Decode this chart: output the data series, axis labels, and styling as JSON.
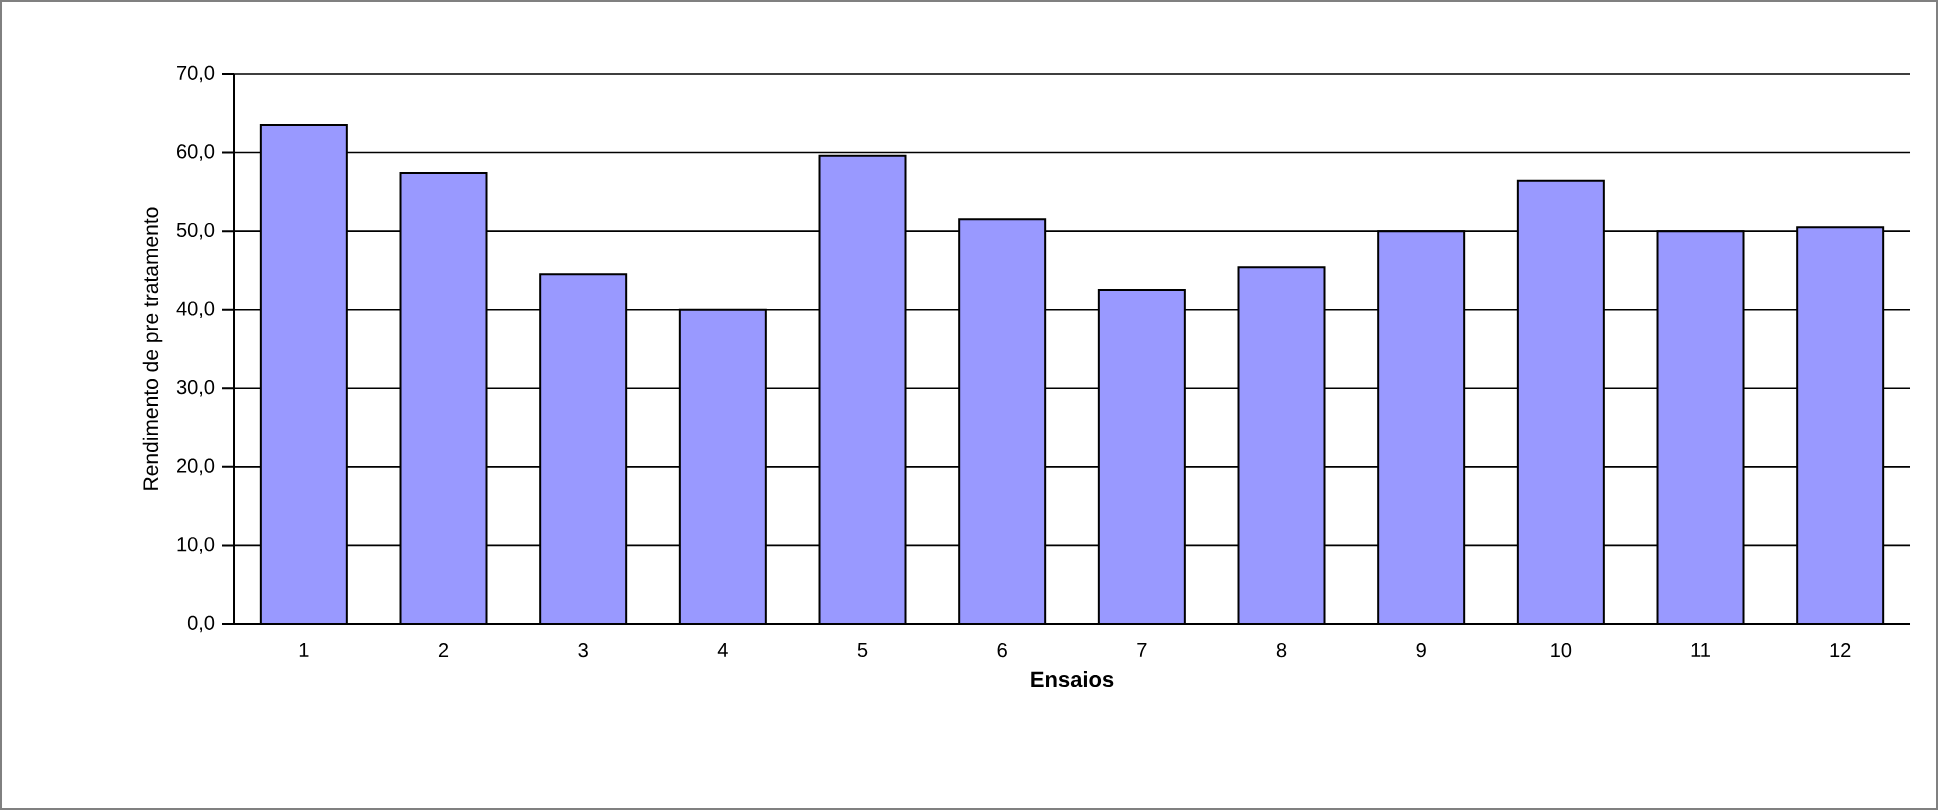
{
  "chart_data": {
    "type": "bar",
    "xlabel": "Ensaios",
    "ylabel": "Rendimento de pre tratamento",
    "categories": [
      "1",
      "2",
      "3",
      "4",
      "5",
      "6",
      "7",
      "8",
      "9",
      "10",
      "11",
      "12"
    ],
    "values": [
      63.5,
      57.4,
      44.5,
      40.0,
      59.6,
      51.5,
      42.5,
      45.4,
      50.0,
      56.4,
      50.0,
      50.5
    ],
    "color": "#9999ff",
    "ylim": [
      0,
      70
    ],
    "yticks": [
      {
        "value": 0,
        "label": "0,0"
      },
      {
        "value": 10,
        "label": "10,0"
      },
      {
        "value": 20,
        "label": "20,0"
      },
      {
        "value": 30,
        "label": "30,0"
      },
      {
        "value": 40,
        "label": "40,0"
      },
      {
        "value": 50,
        "label": "50,0"
      },
      {
        "value": 60,
        "label": "60,0"
      },
      {
        "value": 70,
        "label": "70,0"
      }
    ],
    "grid": "y"
  }
}
